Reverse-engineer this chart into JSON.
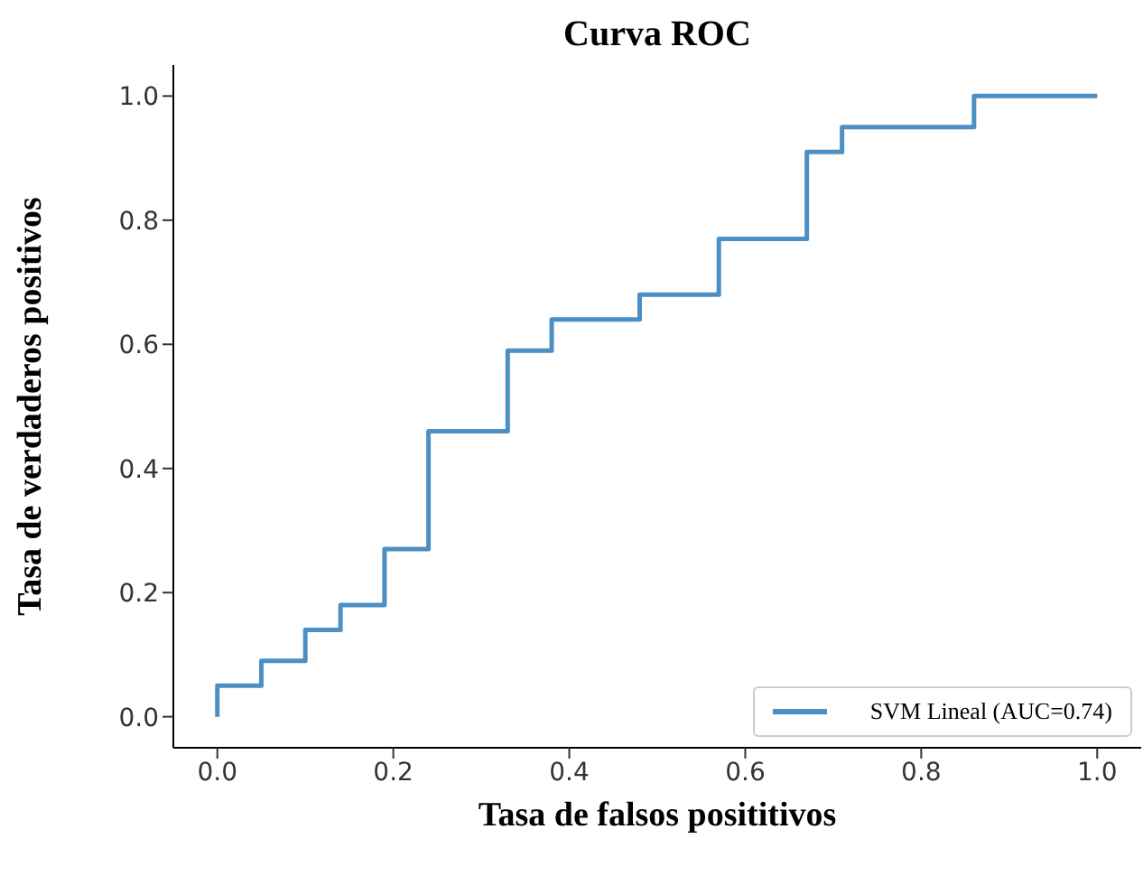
{
  "chart_data": {
    "type": "line",
    "title": "Curva ROC",
    "xlabel": "Tasa de falsos posititivos",
    "ylabel": "Tasa de verdaderos positivos",
    "xlim": [
      -0.05,
      1.05
    ],
    "ylim": [
      -0.05,
      1.05
    ],
    "xticks": [
      {
        "value": 0,
        "label": "0.0"
      },
      {
        "value": 0.2,
        "label": "0.2"
      },
      {
        "value": 0.4,
        "label": "0.4"
      },
      {
        "value": 0.6,
        "label": "0.6"
      },
      {
        "value": 0.8,
        "label": "0.8"
      },
      {
        "value": 1,
        "label": "1.0"
      }
    ],
    "yticks": [
      {
        "value": 0,
        "label": "0.0"
      },
      {
        "value": 0.2,
        "label": "0.2"
      },
      {
        "value": 0.4,
        "label": "0.4"
      },
      {
        "value": 0.6,
        "label": "0.6"
      },
      {
        "value": 0.8,
        "label": "0.8"
      },
      {
        "value": 1,
        "label": "1.0"
      }
    ],
    "grid": false,
    "legend": "bottom right",
    "marker": "none",
    "line_style": "solid",
    "series": [
      {
        "name": "SVM Lineal (AUC=0.74)",
        "color": "#4c8fc4",
        "x": [
          0,
          0,
          0.05,
          0.05,
          0.1,
          0.1,
          0.14,
          0.14,
          0.19,
          0.19,
          0.24,
          0.24,
          0.33,
          0.33,
          0.38,
          0.38,
          0.48,
          0.48,
          0.57,
          0.57,
          0.67,
          0.67,
          0.71,
          0.71,
          0.86,
          0.86,
          1
        ],
        "values": [
          0,
          0.05,
          0.05,
          0.09,
          0.09,
          0.14,
          0.14,
          0.18,
          0.18,
          0.27,
          0.27,
          0.46,
          0.46,
          0.59,
          0.59,
          0.64,
          0.64,
          0.68,
          0.68,
          0.77,
          0.77,
          0.91,
          0.91,
          0.95,
          0.95,
          1,
          1
        ]
      }
    ]
  }
}
